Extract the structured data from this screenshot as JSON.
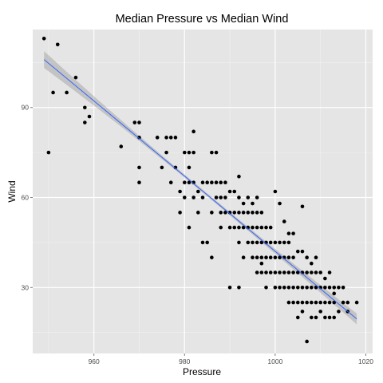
{
  "chart_data": {
    "type": "scatter",
    "title": "Median Pressure vs Median Wind",
    "xlabel": "Pressure",
    "ylabel": "Wind",
    "xlim": [
      946.5,
      1021.5
    ],
    "ylim": [
      8,
      116
    ],
    "xticks": [
      960,
      980,
      1000,
      1020
    ],
    "yticks": [
      30,
      60,
      90
    ],
    "grid": true,
    "panel_background": "#e5e5e5",
    "grid_color": "#ffffff",
    "point_color": "#000000",
    "fit_line": {
      "method": "linear",
      "color": "#3366ff",
      "band_color": "#999999",
      "x": [
        949,
        1018
      ],
      "y": [
        106,
        19.5
      ],
      "band_halfwidth": [
        2.8,
        1.8
      ],
      "band_mid_halfwidth": 0.5
    },
    "points": [
      [
        949,
        113
      ],
      [
        950,
        75
      ],
      [
        951,
        95
      ],
      [
        952,
        111
      ],
      [
        954,
        95
      ],
      [
        956,
        100
      ],
      [
        958,
        90
      ],
      [
        958,
        85
      ],
      [
        959,
        87
      ],
      [
        966,
        77
      ],
      [
        969,
        85
      ],
      [
        970,
        85
      ],
      [
        970,
        80
      ],
      [
        970,
        70
      ],
      [
        970,
        65
      ],
      [
        974,
        80
      ],
      [
        975,
        70
      ],
      [
        976,
        80
      ],
      [
        976,
        75
      ],
      [
        977,
        80
      ],
      [
        977,
        65
      ],
      [
        978,
        80
      ],
      [
        978,
        70
      ],
      [
        979,
        55
      ],
      [
        979,
        62
      ],
      [
        980,
        75
      ],
      [
        980,
        65
      ],
      [
        980,
        60
      ],
      [
        981,
        75
      ],
      [
        981,
        70
      ],
      [
        981,
        65
      ],
      [
        981,
        50
      ],
      [
        982,
        82
      ],
      [
        982,
        75
      ],
      [
        982,
        65
      ],
      [
        982,
        60
      ],
      [
        983,
        55
      ],
      [
        983,
        62
      ],
      [
        984,
        65
      ],
      [
        984,
        60
      ],
      [
        984,
        45
      ],
      [
        985,
        65
      ],
      [
        985,
        45
      ],
      [
        986,
        65
      ],
      [
        986,
        55
      ],
      [
        986,
        75
      ],
      [
        987,
        65
      ],
      [
        987,
        60
      ],
      [
        987,
        75
      ],
      [
        988,
        65
      ],
      [
        988,
        60
      ],
      [
        988,
        55
      ],
      [
        988,
        50
      ],
      [
        989,
        65
      ],
      [
        989,
        60
      ],
      [
        989,
        55
      ],
      [
        990,
        62
      ],
      [
        990,
        55
      ],
      [
        990,
        50
      ],
      [
        991,
        62
      ],
      [
        991,
        55
      ],
      [
        991,
        50
      ],
      [
        992,
        67
      ],
      [
        992,
        60
      ],
      [
        992,
        55
      ],
      [
        992,
        50
      ],
      [
        992,
        45
      ],
      [
        993,
        58
      ],
      [
        993,
        55
      ],
      [
        993,
        50
      ],
      [
        994,
        55
      ],
      [
        994,
        50
      ],
      [
        994,
        45
      ],
      [
        995,
        55
      ],
      [
        995,
        50
      ],
      [
        995,
        45
      ],
      [
        995,
        40
      ],
      [
        996,
        60
      ],
      [
        996,
        55
      ],
      [
        996,
        50
      ],
      [
        996,
        45
      ],
      [
        996,
        40
      ],
      [
        996,
        35
      ],
      [
        997,
        55
      ],
      [
        997,
        50
      ],
      [
        997,
        45
      ],
      [
        997,
        40
      ],
      [
        997,
        35
      ],
      [
        998,
        50
      ],
      [
        998,
        45
      ],
      [
        998,
        40
      ],
      [
        998,
        35
      ],
      [
        999,
        50
      ],
      [
        999,
        45
      ],
      [
        999,
        40
      ],
      [
        999,
        35
      ],
      [
        1000,
        45
      ],
      [
        1000,
        40
      ],
      [
        1000,
        35
      ],
      [
        1000,
        30
      ],
      [
        1001,
        45
      ],
      [
        1001,
        40
      ],
      [
        1001,
        35
      ],
      [
        1001,
        30
      ],
      [
        1002,
        45
      ],
      [
        1002,
        40
      ],
      [
        1002,
        35
      ],
      [
        1002,
        30
      ],
      [
        1003,
        45
      ],
      [
        1003,
        40
      ],
      [
        1003,
        35
      ],
      [
        1003,
        30
      ],
      [
        1004,
        40
      ],
      [
        1004,
        35
      ],
      [
        1004,
        30
      ],
      [
        1004,
        25
      ],
      [
        1005,
        35
      ],
      [
        1005,
        30
      ],
      [
        1005,
        25
      ],
      [
        1006,
        35
      ],
      [
        1006,
        30
      ],
      [
        1006,
        25
      ],
      [
        1006,
        57
      ],
      [
        1007,
        35
      ],
      [
        1007,
        30
      ],
      [
        1007,
        25
      ],
      [
        1007,
        12
      ],
      [
        1008,
        35
      ],
      [
        1008,
        30
      ],
      [
        1008,
        25
      ],
      [
        1009,
        35
      ],
      [
        1009,
        30
      ],
      [
        1009,
        25
      ],
      [
        1009,
        20
      ],
      [
        1010,
        35
      ],
      [
        1010,
        30
      ],
      [
        1010,
        25
      ],
      [
        1011,
        30
      ],
      [
        1011,
        25
      ],
      [
        1011,
        20
      ],
      [
        1012,
        30
      ],
      [
        1012,
        25
      ],
      [
        1012,
        20
      ],
      [
        1013,
        30
      ],
      [
        1013,
        25
      ],
      [
        1013,
        20
      ],
      [
        1014,
        30
      ],
      [
        1015,
        30
      ],
      [
        1015,
        25
      ],
      [
        1016,
        25
      ],
      [
        1018,
        25
      ],
      [
        986,
        40
      ],
      [
        990,
        30
      ],
      [
        992,
        30
      ],
      [
        993,
        40
      ],
      [
        994,
        60
      ],
      [
        995,
        58
      ],
      [
        997,
        38
      ],
      [
        998,
        30
      ],
      [
        1000,
        62
      ],
      [
        1001,
        58
      ],
      [
        1002,
        52
      ],
      [
        1003,
        48
      ],
      [
        1003,
        25
      ],
      [
        1004,
        48
      ],
      [
        1005,
        42
      ],
      [
        1005,
        20
      ],
      [
        1006,
        42
      ],
      [
        1006,
        22
      ],
      [
        1007,
        40
      ],
      [
        1008,
        20
      ],
      [
        1008,
        38
      ],
      [
        1009,
        40
      ],
      [
        1010,
        22
      ],
      [
        1011,
        33
      ],
      [
        1012,
        35
      ],
      [
        1013,
        28
      ],
      [
        1014,
        22
      ],
      [
        1016,
        22
      ]
    ]
  }
}
